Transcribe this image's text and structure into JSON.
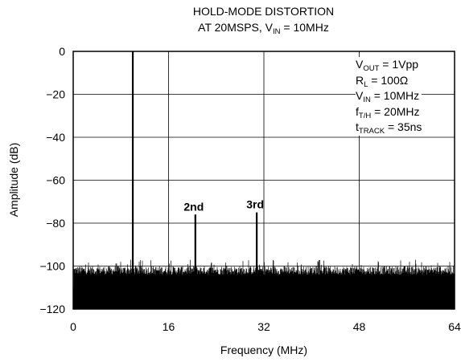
{
  "chart_data": {
    "type": "line",
    "title_line1": "HOLD-MODE DISTORTION",
    "title_line2_prefix": "AT 20MSPS, V",
    "title_line2_sub": "IN",
    "title_line2_suffix": " = 10MHz",
    "xlabel": "Frequency (MHz)",
    "ylabel": "Amplitude (dB)",
    "xlim": [
      0,
      64
    ],
    "ylim": [
      -120,
      0
    ],
    "xticks": [
      0,
      16,
      32,
      48,
      64
    ],
    "xtick_labels": [
      "0",
      "16",
      "32",
      "48",
      "64"
    ],
    "yticks": [
      0,
      -20,
      -40,
      -60,
      -80,
      -100,
      -120
    ],
    "ytick_labels": [
      "0",
      "−20",
      "−40",
      "−60",
      "−80",
      "−100",
      "−120"
    ],
    "grid": true,
    "noise_floor": {
      "range_db": [
        -120,
        -102
      ]
    },
    "peaks": [
      {
        "x": 10,
        "y": 0,
        "label": ""
      },
      {
        "x": 20.5,
        "y": -76,
        "label": "2nd"
      },
      {
        "x": 30.8,
        "y": -75,
        "label": "3rd"
      }
    ],
    "annotation": [
      {
        "main": "V",
        "sub": "OUT",
        "rest": " = 1Vpp"
      },
      {
        "main": "R",
        "sub": "L",
        "rest": " = 100Ω"
      },
      {
        "main": "V",
        "sub": "IN",
        "rest": " = 10MHz"
      },
      {
        "main": "f",
        "sub": "T/H",
        "rest": " = 20MHz"
      },
      {
        "main": "t",
        "sub": "TRACK",
        "rest": " = 35ns"
      }
    ],
    "colors": {
      "trace": "#000000",
      "grid": "#000000",
      "background": "#ffffff"
    }
  }
}
